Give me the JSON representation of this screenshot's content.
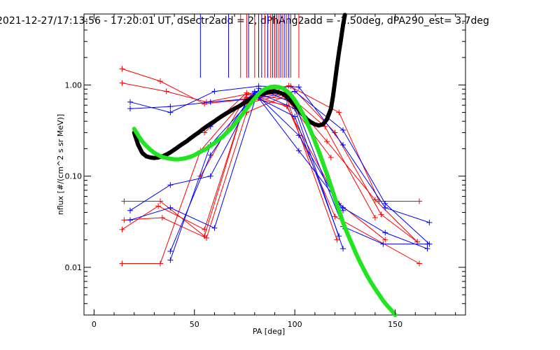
{
  "chart_data": {
    "type": "line",
    "title": "2021-12-27/17:13:56 - 17:20:01 UT, dSectr2add = 2, dPhAng2add = -2.50deg, dPA290_est=   3.7deg",
    "xlabel": "PA [deg]",
    "ylabel": "nflux [#/(cm^2 s sr MeV)]",
    "xlim": [
      -5,
      185
    ],
    "ylim": [
      0.003,
      6.0
    ],
    "yscale": "log",
    "grid": false,
    "x_ticks": [
      {
        "value": 0,
        "label": "0"
      },
      {
        "value": 50,
        "label": "50"
      },
      {
        "value": 100,
        "label": "100"
      },
      {
        "value": 150,
        "label": "150"
      }
    ],
    "y_ticks": [
      {
        "value": 0.01,
        "label": "0.01"
      },
      {
        "value": 0.1,
        "label": "0.10"
      },
      {
        "value": 1.0,
        "label": "1.00"
      }
    ],
    "colors": {
      "red": "#ff0000",
      "blue": "#0000ff",
      "black": "#000000",
      "green": "#22e522"
    },
    "vertical_markers": [
      {
        "color": "#0000ff",
        "x": 53
      },
      {
        "color": "#0000ff",
        "x": 67
      },
      {
        "color": "#0000ff",
        "x": 77
      },
      {
        "color": "#ff0000",
        "x": 73
      },
      {
        "color": "#ff0000",
        "x": 76
      },
      {
        "color": "#ff0000",
        "x": 80
      },
      {
        "color": "#0000ff",
        "x": 82
      },
      {
        "color": "#0000ff",
        "x": 83.5
      },
      {
        "color": "#ff0000",
        "x": 85
      },
      {
        "color": "#0000ff",
        "x": 86.5
      },
      {
        "color": "#ff0000",
        "x": 88
      },
      {
        "color": "#0000ff",
        "x": 89
      },
      {
        "color": "#ff0000",
        "x": 90
      },
      {
        "color": "#0000ff",
        "x": 91
      },
      {
        "color": "#ff0000",
        "x": 92
      },
      {
        "color": "#0000ff",
        "x": 93
      },
      {
        "color": "#ff0000",
        "x": 94
      },
      {
        "color": "#0000ff",
        "x": 95
      },
      {
        "color": "#ff0000",
        "x": 96
      },
      {
        "color": "#0000ff",
        "x": 97
      },
      {
        "color": "#ff0000",
        "x": 98
      },
      {
        "color": "#ff0000",
        "x": 102
      }
    ],
    "series": [
      {
        "color": "#ff0000",
        "x": [
          14,
          33,
          55,
          82,
          97,
          122,
          142,
          162
        ],
        "y": [
          1.5,
          1.1,
          0.62,
          0.72,
          0.98,
          0.5,
          0.053,
          0.053
        ]
      },
      {
        "color": "#ff0000",
        "x": [
          14,
          36,
          56,
          82,
          98,
          120,
          143,
          161
        ],
        "y": [
          1.05,
          0.85,
          0.65,
          0.84,
          0.97,
          0.3,
          0.038,
          0.019
        ]
      },
      {
        "color": "#ff0000",
        "x": [
          15,
          33,
          55,
          76,
          95,
          116,
          140,
          161
        ],
        "y": [
          0.053,
          0.053,
          0.022,
          0.73,
          0.83,
          0.24,
          0.055,
          0.019
        ]
      },
      {
        "color": "#ff0000",
        "x": [
          14,
          32,
          55,
          75,
          96,
          115,
          140
        ],
        "y": [
          0.026,
          0.047,
          0.026,
          0.62,
          0.8,
          0.35,
          0.035
        ]
      },
      {
        "color": "#ff0000",
        "x": [
          15,
          34,
          56,
          76,
          95,
          118
        ],
        "y": [
          0.033,
          0.035,
          0.021,
          0.5,
          0.75,
          0.16
        ]
      },
      {
        "color": "#ff0000",
        "x": [
          14,
          33,
          53,
          76,
          96,
          120,
          162
        ],
        "y": [
          0.011,
          0.011,
          0.19,
          0.73,
          0.6,
          0.036,
          0.011
        ]
      },
      {
        "color": "#ff0000",
        "x": [
          55,
          76,
          96,
          122,
          145
        ],
        "y": [
          0.3,
          0.82,
          0.58,
          0.05,
          0.02
        ]
      },
      {
        "color": "#ff0000",
        "x": [
          53,
          76,
          96,
          121
        ],
        "y": [
          0.1,
          0.78,
          0.7,
          0.02
        ]
      },
      {
        "color": "#0000ff",
        "x": [
          18,
          38,
          60,
          82,
          102,
          124,
          145,
          167
        ],
        "y": [
          0.65,
          0.5,
          0.85,
          0.97,
          0.95,
          0.22,
          0.045,
          0.031
        ]
      },
      {
        "color": "#0000ff",
        "x": [
          18,
          38,
          58,
          82,
          100,
          124,
          145,
          167
        ],
        "y": [
          0.55,
          0.58,
          0.65,
          0.72,
          0.85,
          0.32,
          0.05,
          0.018
        ]
      },
      {
        "color": "#0000ff",
        "x": [
          18,
          38,
          58,
          80,
          102,
          124,
          145,
          166
        ],
        "y": [
          0.042,
          0.08,
          0.1,
          0.82,
          0.19,
          0.045,
          0.024,
          0.016
        ]
      },
      {
        "color": "#0000ff",
        "x": [
          18,
          38,
          60,
          82,
          100,
          124,
          144,
          166
        ],
        "y": [
          0.033,
          0.045,
          0.027,
          0.92,
          0.62,
          0.028,
          0.018,
          0.018
        ]
      },
      {
        "color": "#0000ff",
        "x": [
          38,
          58,
          80,
          100,
          124
        ],
        "y": [
          0.015,
          0.17,
          0.85,
          0.55,
          0.016
        ]
      },
      {
        "color": "#0000ff",
        "x": [
          38,
          58,
          80,
          100,
          122
        ],
        "y": [
          0.012,
          0.22,
          0.75,
          0.45,
          0.022
        ]
      },
      {
        "color": "#0000ff",
        "x": [
          58,
          80,
          102,
          124
        ],
        "y": [
          0.35,
          0.82,
          0.28,
          0.042
        ]
      }
    ],
    "fit_curves": [
      {
        "color": "#000000",
        "x": [
          20,
          22,
          24,
          26,
          28,
          30,
          32,
          34,
          36,
          38,
          40,
          42,
          44,
          46,
          48,
          50,
          52,
          54,
          56,
          58,
          60,
          62,
          64,
          66,
          68,
          70,
          72,
          74,
          76,
          78,
          80,
          82,
          84,
          86,
          88,
          90,
          92,
          94,
          96,
          98,
          100,
          102,
          104,
          106,
          108,
          110,
          112,
          114,
          116,
          118,
          119,
          120,
          121,
          122,
          123,
          124,
          125
        ],
        "y": [
          0.3,
          0.22,
          0.18,
          0.165,
          0.16,
          0.158,
          0.16,
          0.165,
          0.172,
          0.182,
          0.195,
          0.21,
          0.225,
          0.24,
          0.26,
          0.28,
          0.3,
          0.325,
          0.35,
          0.375,
          0.4,
          0.43,
          0.46,
          0.49,
          0.52,
          0.55,
          0.58,
          0.62,
          0.66,
          0.7,
          0.74,
          0.78,
          0.8,
          0.83,
          0.84,
          0.85,
          0.83,
          0.8,
          0.74,
          0.67,
          0.6,
          0.53,
          0.47,
          0.42,
          0.39,
          0.37,
          0.36,
          0.37,
          0.42,
          0.55,
          0.75,
          1.1,
          1.6,
          2.3,
          3.2,
          4.5,
          6.0
        ]
      },
      {
        "color": "#22e522",
        "x": [
          20,
          22,
          24,
          26,
          28,
          30,
          32,
          34,
          36,
          38,
          40,
          42,
          44,
          46,
          48,
          50,
          52,
          54,
          56,
          58,
          60,
          62,
          64,
          66,
          68,
          70,
          72,
          74,
          76,
          78,
          80,
          82,
          84,
          86,
          88,
          90,
          92,
          94,
          96,
          98,
          100,
          102,
          104,
          106,
          108,
          110,
          112,
          114,
          116,
          118,
          120,
          122,
          124,
          126,
          128,
          130,
          132,
          134,
          136,
          138,
          140,
          142,
          144,
          146,
          148,
          150
        ],
        "y": [
          0.33,
          0.28,
          0.24,
          0.215,
          0.195,
          0.18,
          0.17,
          0.162,
          0.158,
          0.155,
          0.153,
          0.153,
          0.155,
          0.158,
          0.163,
          0.17,
          0.18,
          0.19,
          0.2,
          0.215,
          0.23,
          0.25,
          0.27,
          0.3,
          0.33,
          0.37,
          0.42,
          0.48,
          0.55,
          0.63,
          0.71,
          0.8,
          0.87,
          0.92,
          0.95,
          0.96,
          0.95,
          0.92,
          0.86,
          0.78,
          0.68,
          0.58,
          0.48,
          0.39,
          0.31,
          0.24,
          0.185,
          0.14,
          0.105,
          0.078,
          0.057,
          0.042,
          0.031,
          0.024,
          0.019,
          0.015,
          0.012,
          0.0098,
          0.0081,
          0.0068,
          0.0058,
          0.005,
          0.0043,
          0.0038,
          0.0034,
          0.003
        ]
      }
    ]
  }
}
